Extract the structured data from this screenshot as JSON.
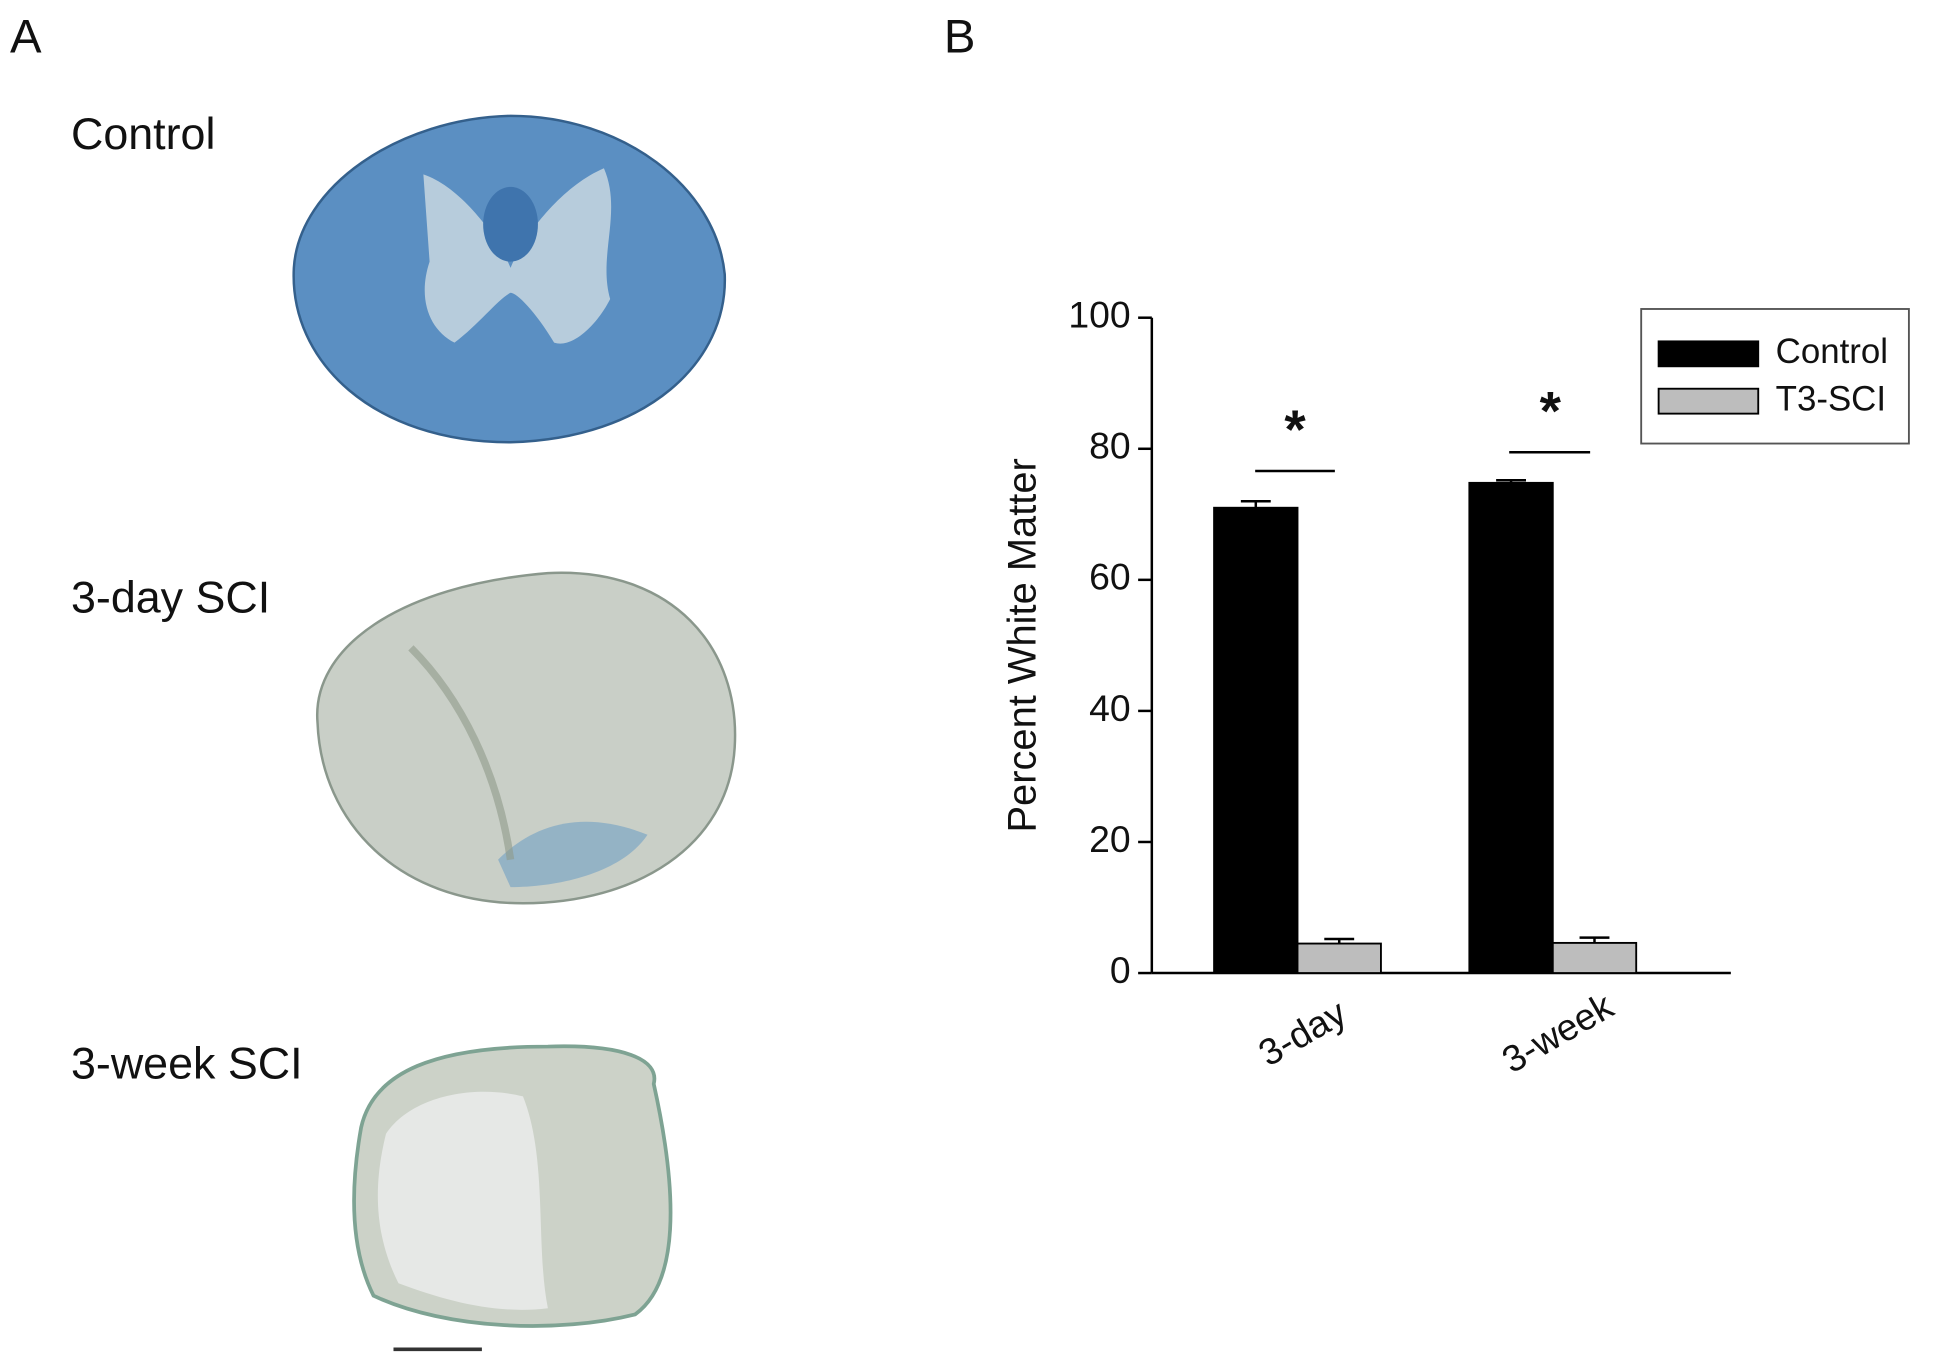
{
  "panels": {
    "a": "A",
    "b": "B"
  },
  "images": [
    {
      "label": "Control"
    },
    {
      "label": "3-day SCI"
    },
    {
      "label": "3-week SCI"
    }
  ],
  "chart_data": {
    "type": "bar",
    "y_label": "Percent White Matter",
    "categories": [
      "3-day",
      "3-week"
    ],
    "series": [
      {
        "name": "Control",
        "color": "#000000",
        "values": [
          71,
          74.8
        ],
        "errors": [
          1,
          0.4
        ]
      },
      {
        "name": "T3-SCI",
        "color": "#bdbdbd",
        "values": [
          4.5,
          4.6
        ],
        "errors": [
          0.7,
          0.8
        ]
      }
    ],
    "ylim": [
      0,
      100
    ],
    "yticks": [
      0,
      20,
      40,
      60,
      80,
      100
    ],
    "annotations": [
      "*",
      "*"
    ],
    "legend": "upper-right"
  }
}
